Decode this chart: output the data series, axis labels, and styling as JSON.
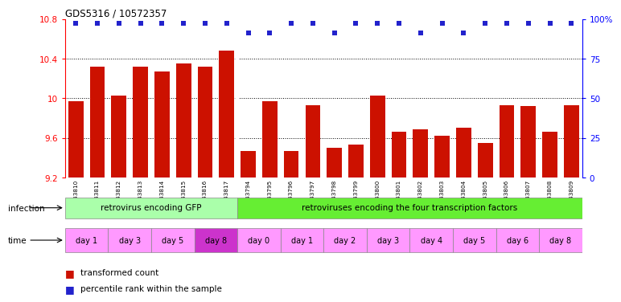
{
  "title": "GDS5316 / 10572357",
  "samples": [
    "GSM943810",
    "GSM943811",
    "GSM943812",
    "GSM943813",
    "GSM943814",
    "GSM943815",
    "GSM943816",
    "GSM943817",
    "GSM943794",
    "GSM943795",
    "GSM943796",
    "GSM943797",
    "GSM943798",
    "GSM943799",
    "GSM943800",
    "GSM943801",
    "GSM943802",
    "GSM943803",
    "GSM943804",
    "GSM943805",
    "GSM943806",
    "GSM943807",
    "GSM943808",
    "GSM943809"
  ],
  "bar_values": [
    9.97,
    10.32,
    10.03,
    10.32,
    10.27,
    10.35,
    10.32,
    10.48,
    9.47,
    9.97,
    9.47,
    9.93,
    9.5,
    9.53,
    10.03,
    9.66,
    9.69,
    9.62,
    9.7,
    9.55,
    9.93,
    9.92,
    9.66,
    9.93
  ],
  "percentile_values": [
    97,
    97,
    97,
    97,
    97,
    97,
    97,
    97,
    91,
    91,
    97,
    97,
    91,
    97,
    97,
    97,
    91,
    97,
    91,
    97,
    97,
    97,
    97,
    97
  ],
  "bar_color": "#cc1100",
  "percentile_color": "#2222cc",
  "ymin": 9.2,
  "ymax": 10.8,
  "yticks": [
    9.2,
    9.6,
    10.0,
    10.4,
    10.8
  ],
  "ytick_labels": [
    "9.2",
    "9.6",
    "10",
    "10.4",
    "10.8"
  ],
  "y2min": 0,
  "y2max": 100,
  "y2ticks": [
    0,
    25,
    50,
    75,
    100
  ],
  "y2tick_labels": [
    "0",
    "25",
    "50",
    "75",
    "100%"
  ],
  "dotted_lines": [
    9.6,
    10.0,
    10.4
  ],
  "gfp_color": "#aaffaa",
  "four_color": "#66ee33",
  "day8_gfp_color": "#dd44dd",
  "time_light_color": "#ff99ff",
  "time_dark_color": "#cc33cc",
  "plot_bg": "#ffffff",
  "separator_color": "#ffffff"
}
